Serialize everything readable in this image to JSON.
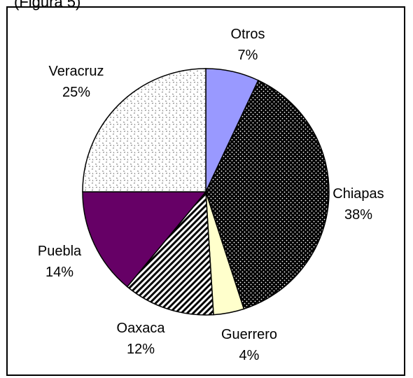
{
  "page": {
    "top_text": "(Figura 5)"
  },
  "chart_data": {
    "type": "pie",
    "title": "",
    "start_angle_deg": 0,
    "direction": "clockwise",
    "slices": [
      {
        "label": "Otros",
        "value": 7,
        "pct_label": "7%",
        "fill": "#9999ff",
        "pattern": "solid"
      },
      {
        "label": "Chiapas",
        "value": 38,
        "pct_label": "38%",
        "fill": "#000000",
        "pattern": "dots-white-on-black"
      },
      {
        "label": "Guerrero",
        "value": 4,
        "pct_label": "4%",
        "fill": "#ffffcc",
        "pattern": "solid"
      },
      {
        "label": "Oaxaca",
        "value": 12,
        "pct_label": "12%",
        "fill": "#ffffff",
        "pattern": "diagonal-stripes"
      },
      {
        "label": "Puebla",
        "value": 14,
        "pct_label": "14%",
        "fill": "#660066",
        "pattern": "solid"
      },
      {
        "label": "Veracruz",
        "value": 25,
        "pct_label": "25%",
        "fill": "#ffffff",
        "pattern": "small-confetti"
      }
    ],
    "legend": "none"
  }
}
